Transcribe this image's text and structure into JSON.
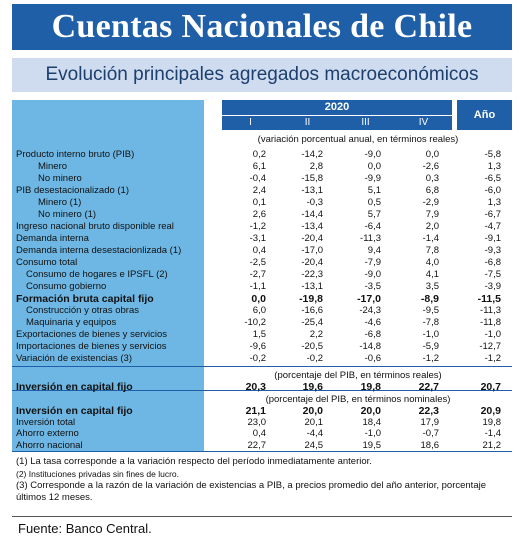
{
  "header": {
    "title": "Cuentas Nacionales de Chile",
    "subtitle": "Evolución principales agregados macroeconómicos"
  },
  "columns": {
    "year": "2020",
    "quarters": [
      "I",
      "II",
      "III",
      "IV"
    ],
    "annual": "Año"
  },
  "units": {
    "growth": "(variación porcentual anual, en términos reales)",
    "pct_real": "(porcentaje del PIB, en términos reales)",
    "pct_nominal": "(porcentaje del PIB, en términos nominales)"
  },
  "rows": [
    {
      "label": "Producto interno bruto (PIB)",
      "indent": 0,
      "bold": false,
      "values": [
        "0,2",
        "-14,2",
        "-9,0",
        "0,0",
        "-5,8"
      ]
    },
    {
      "label": "Minero",
      "indent": 2,
      "bold": false,
      "values": [
        "6,1",
        "2,8",
        "0,0",
        "-2,6",
        "1,3"
      ]
    },
    {
      "label": "No minero",
      "indent": 2,
      "bold": false,
      "values": [
        "-0,4",
        "-15,8",
        "-9,9",
        "0,3",
        "-6,5"
      ]
    },
    {
      "label": "PIB desestacionalizado (1)",
      "indent": 0,
      "bold": false,
      "values": [
        "2,4",
        "-13,1",
        "5,1",
        "6,8",
        "-6,0"
      ]
    },
    {
      "label": "Minero (1)",
      "indent": 2,
      "bold": false,
      "values": [
        "0,1",
        "-0,3",
        "0,5",
        "-2,9",
        "1,3"
      ]
    },
    {
      "label": "No minero (1)",
      "indent": 2,
      "bold": false,
      "values": [
        "2,6",
        "-14,4",
        "5,7",
        "7,9",
        "-6,7"
      ]
    },
    {
      "label": "Ingreso nacional bruto disponible real",
      "indent": 0,
      "bold": false,
      "values": [
        "-1,2",
        "-13,4",
        "-6,4",
        "2,0",
        "-4,7"
      ]
    },
    {
      "label": "Demanda interna",
      "indent": 0,
      "bold": false,
      "values": [
        "-3,1",
        "-20,4",
        "-11,3",
        "-1,4",
        "-9,1"
      ]
    },
    {
      "label": "Demanda interna desestacionlizada (1)",
      "indent": 0,
      "bold": false,
      "values": [
        "0,4",
        "-17,0",
        "9,4",
        "7,8",
        "-9,3"
      ]
    },
    {
      "label": "Consumo total",
      "indent": 0,
      "bold": false,
      "values": [
        "-2,5",
        "-20,4",
        "-7,9",
        "4,0",
        "-6,8"
      ]
    },
    {
      "label": "Consumo de hogares e IPSFL (2)",
      "indent": 1,
      "bold": false,
      "values": [
        "-2,7",
        "-22,3",
        "-9,0",
        "4,1",
        "-7,5"
      ]
    },
    {
      "label": "Consumo gobierno",
      "indent": 1,
      "bold": false,
      "values": [
        "-1,1",
        "-13,1",
        "-3,5",
        "3,5",
        "-3,9"
      ]
    },
    {
      "label": "Formación bruta capital fijo",
      "indent": 0,
      "bold": true,
      "values": [
        "0,0",
        "-19,8",
        "-17,0",
        "-8,9",
        "-11,5"
      ]
    },
    {
      "label": "Construcción y otras obras",
      "indent": 1,
      "bold": false,
      "values": [
        "6,0",
        "-16,6",
        "-24,3",
        "-9,5",
        "-11,3"
      ]
    },
    {
      "label": "Maquinaria y equipos",
      "indent": 1,
      "bold": false,
      "values": [
        "-10,2",
        "-25,4",
        "-4,6",
        "-7,8",
        "-11,8"
      ]
    },
    {
      "label": "Exportaciones de bienes y servicios",
      "indent": 0,
      "bold": false,
      "values": [
        "1,5",
        "2,2",
        "-6,8",
        "-1,0",
        "-1,0"
      ]
    },
    {
      "label": "Importaciones de bienes y servicios",
      "indent": 0,
      "bold": false,
      "values": [
        "-9,6",
        "-20,5",
        "-14,8",
        "-5,9",
        "-12,7"
      ]
    },
    {
      "label": "Variación de existencias (3)",
      "indent": 0,
      "bold": false,
      "values": [
        "-0,2",
        "-0,2",
        "-0,6",
        "-1,2",
        "-1,2"
      ]
    }
  ],
  "rows_real": [
    {
      "label": "Inversión en capital fijo",
      "indent": 0,
      "bold": true,
      "values": [
        "20,3",
        "19,6",
        "19,8",
        "22,7",
        "20,7"
      ]
    }
  ],
  "rows_nominal": [
    {
      "label": "Inversión en capital fijo",
      "indent": 0,
      "bold": true,
      "values": [
        "21,1",
        "20,0",
        "20,0",
        "22,3",
        "20,9"
      ]
    },
    {
      "label": "Inversión total",
      "indent": 0,
      "bold": false,
      "values": [
        "23,0",
        "20,1",
        "18,4",
        "17,9",
        "19,8"
      ]
    },
    {
      "label": "Ahorro externo",
      "indent": 0,
      "bold": false,
      "values": [
        "0,4",
        "-4,4",
        "-1,0",
        "-0,7",
        "-1,4"
      ]
    },
    {
      "label": "Ahorro nacional",
      "indent": 0,
      "bold": false,
      "values": [
        "22,7",
        "24,5",
        "19,5",
        "18,6",
        "21,2"
      ]
    }
  ],
  "notes": {
    "n1": "(1) La tasa corresponde a la variación respecto del período inmediatamente anterior.",
    "n2": "(2) Instituciones privadas sin fines de lucro.",
    "n3a": "(3) Corresponde a la razón de la variación de existencias a PIB, a precios promedio del año anterior, porcentaje",
    "n3b": "últimos 12 meses."
  },
  "source": "Fuente: Banco Central.",
  "colors": {
    "brand_blue": "#1f5fa8",
    "label_blue": "#6eb7e4",
    "subtitle_bg": "#cfdcef"
  }
}
